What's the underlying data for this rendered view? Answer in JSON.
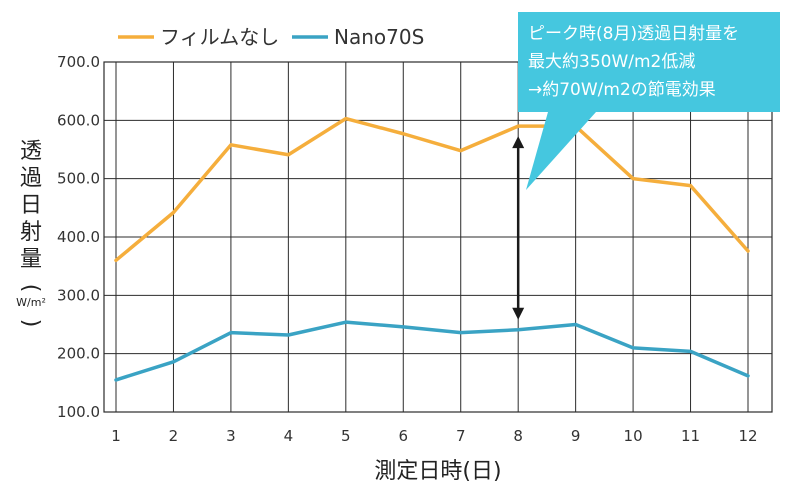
{
  "chart_data": {
    "type": "line",
    "categories": [
      "1",
      "2",
      "3",
      "4",
      "5",
      "6",
      "7",
      "8",
      "9",
      "10",
      "11",
      "12"
    ],
    "series": [
      {
        "name": "フィルムなし",
        "color": "#f5ae3c",
        "values": [
          360,
          442,
          558,
          541,
          603,
          577,
          548,
          590,
          590,
          500,
          488,
          376
        ]
      },
      {
        "name": "Nano70S",
        "color": "#3aa3c4",
        "values": [
          155,
          186,
          236,
          232,
          254,
          246,
          236,
          241,
          250,
          210,
          204,
          162
        ]
      }
    ],
    "ylim": [
      100,
      700
    ],
    "yticks": [
      "100.0",
      "200.0",
      "300.0",
      "400.0",
      "500.0",
      "600.0",
      "700.0"
    ],
    "ylabel": "透過日射量",
    "ylabel_unit": "W/m²",
    "ylabel_open": "(",
    "ylabel_close": ")",
    "xlabel": "測定日時(日)",
    "grid": true,
    "legend_position": "top-left",
    "annotation": {
      "lines": [
        "ピーク時(8月)透過日射量を",
        "最大約350W/m2低減",
        "→約70W/m2の節電効果"
      ],
      "background_color": "#45c7df",
      "arrow_at_category": "8"
    }
  }
}
